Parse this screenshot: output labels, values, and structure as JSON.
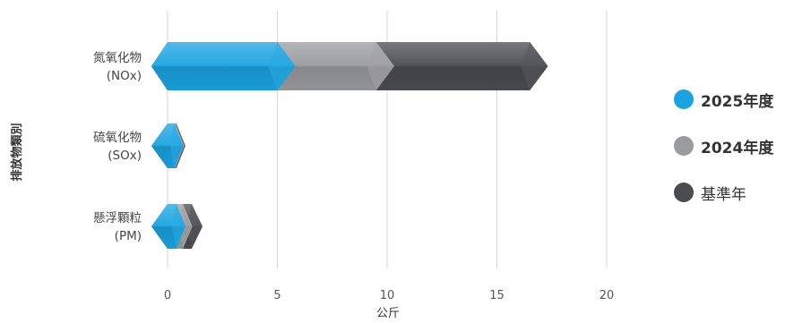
{
  "chart_data": {
    "type": "bar",
    "orientation": "horizontal",
    "xlabel": "公斤",
    "ylabel": "排放物類別",
    "xlim": [
      0,
      20
    ],
    "xticks": [
      0,
      5,
      10,
      15,
      20
    ],
    "grid": true,
    "legend_position": "right",
    "categories": [
      {
        "line1": "氮氧化物",
        "line2": "(NOx)"
      },
      {
        "line1": "硫氧化物",
        "line2": "(SOx)"
      },
      {
        "line1": "懸浮顆粒",
        "line2": "(PM)"
      }
    ],
    "series": [
      {
        "name": "2025年度",
        "bold": true,
        "color": "#1aa3e0",
        "values": [
          5.0,
          0.3,
          0.4
        ]
      },
      {
        "name": "2024年度",
        "bold": true,
        "color": "#9a9b9e",
        "values": [
          9.5,
          0.35,
          0.7
        ]
      },
      {
        "name": "基準年",
        "bold": false,
        "color": "#4b4c4f",
        "values": [
          16.5,
          0.4,
          1.1
        ]
      }
    ]
  }
}
